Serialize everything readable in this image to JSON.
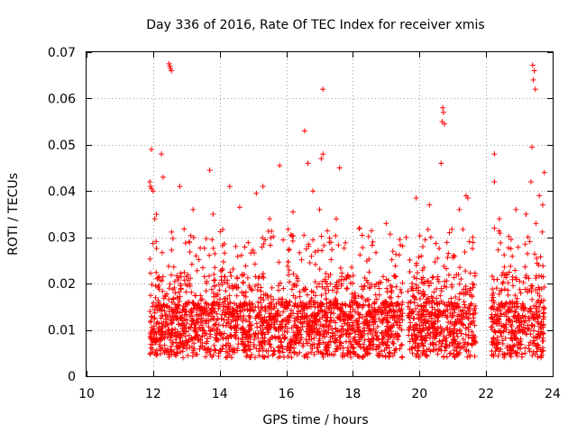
{
  "chart_data": {
    "type": "scatter",
    "title": "Day 336 of 2016, Rate Of TEC Index for receiver xmis",
    "xlabel": "GPS time / hours",
    "ylabel": "ROTI / TECUs",
    "xlim": [
      10,
      24
    ],
    "ylim": [
      0,
      0.07
    ],
    "x_ticks": [
      10,
      12,
      14,
      16,
      18,
      20,
      22,
      24
    ],
    "x_tick_labels": [
      "10",
      "12",
      "14",
      "16",
      "18",
      "20",
      "22",
      "24"
    ],
    "y_ticks": [
      0,
      0.01,
      0.02,
      0.03,
      0.04,
      0.05,
      0.06,
      0.07
    ],
    "y_tick_labels": [
      "0",
      "0.01",
      "0.02",
      "0.03",
      "0.04",
      "0.05",
      "0.06",
      "0.07"
    ],
    "grid": true,
    "marker": "+",
    "color": "#ff0000",
    "series": [
      {
        "name": "ROTI",
        "points": [
          [
            12.5,
            0.067
          ],
          [
            12.52,
            0.0665
          ],
          [
            12.55,
            0.066
          ],
          [
            12.48,
            0.0675
          ],
          [
            23.4,
            0.0672
          ],
          [
            23.45,
            0.066
          ],
          [
            23.42,
            0.064
          ],
          [
            23.48,
            0.062
          ],
          [
            17.1,
            0.062
          ],
          [
            16.55,
            0.053
          ],
          [
            20.7,
            0.058
          ],
          [
            20.72,
            0.057
          ],
          [
            20.68,
            0.055
          ],
          [
            20.75,
            0.0545
          ],
          [
            20.65,
            0.046
          ],
          [
            11.95,
            0.049
          ],
          [
            12.25,
            0.048
          ],
          [
            22.25,
            0.048
          ],
          [
            23.38,
            0.0495
          ],
          [
            17.1,
            0.048
          ],
          [
            17.05,
            0.047
          ],
          [
            16.65,
            0.046
          ],
          [
            15.8,
            0.0455
          ],
          [
            13.7,
            0.0445
          ],
          [
            17.6,
            0.045
          ],
          [
            22.25,
            0.042
          ],
          [
            23.35,
            0.042
          ],
          [
            11.9,
            0.042
          ],
          [
            11.92,
            0.041
          ],
          [
            11.95,
            0.0405
          ],
          [
            12.0,
            0.04
          ],
          [
            12.3,
            0.043
          ],
          [
            12.8,
            0.041
          ],
          [
            14.3,
            0.041
          ],
          [
            15.1,
            0.0395
          ],
          [
            15.3,
            0.041
          ],
          [
            16.8,
            0.04
          ],
          [
            19.9,
            0.0385
          ],
          [
            20.3,
            0.037
          ],
          [
            21.4,
            0.039
          ],
          [
            21.45,
            0.0385
          ],
          [
            23.6,
            0.039
          ],
          [
            23.7,
            0.037
          ],
          [
            23.75,
            0.044
          ],
          [
            12.1,
            0.035
          ],
          [
            12.05,
            0.034
          ],
          [
            13.2,
            0.036
          ],
          [
            13.8,
            0.035
          ],
          [
            14.6,
            0.0365
          ],
          [
            15.5,
            0.034
          ],
          [
            16.2,
            0.0355
          ],
          [
            17.0,
            0.036
          ],
          [
            17.5,
            0.034
          ],
          [
            18.2,
            0.032
          ],
          [
            19.0,
            0.033
          ],
          [
            19.6,
            0.03
          ],
          [
            21.2,
            0.036
          ],
          [
            22.4,
            0.034
          ],
          [
            22.9,
            0.036
          ],
          [
            23.2,
            0.035
          ],
          [
            23.5,
            0.033
          ],
          [
            18.6,
            0.029
          ],
          [
            19.2,
            0.027
          ],
          [
            20.1,
            0.028
          ],
          [
            20.9,
            0.031
          ],
          [
            21.6,
            0.03
          ]
        ]
      }
    ]
  }
}
